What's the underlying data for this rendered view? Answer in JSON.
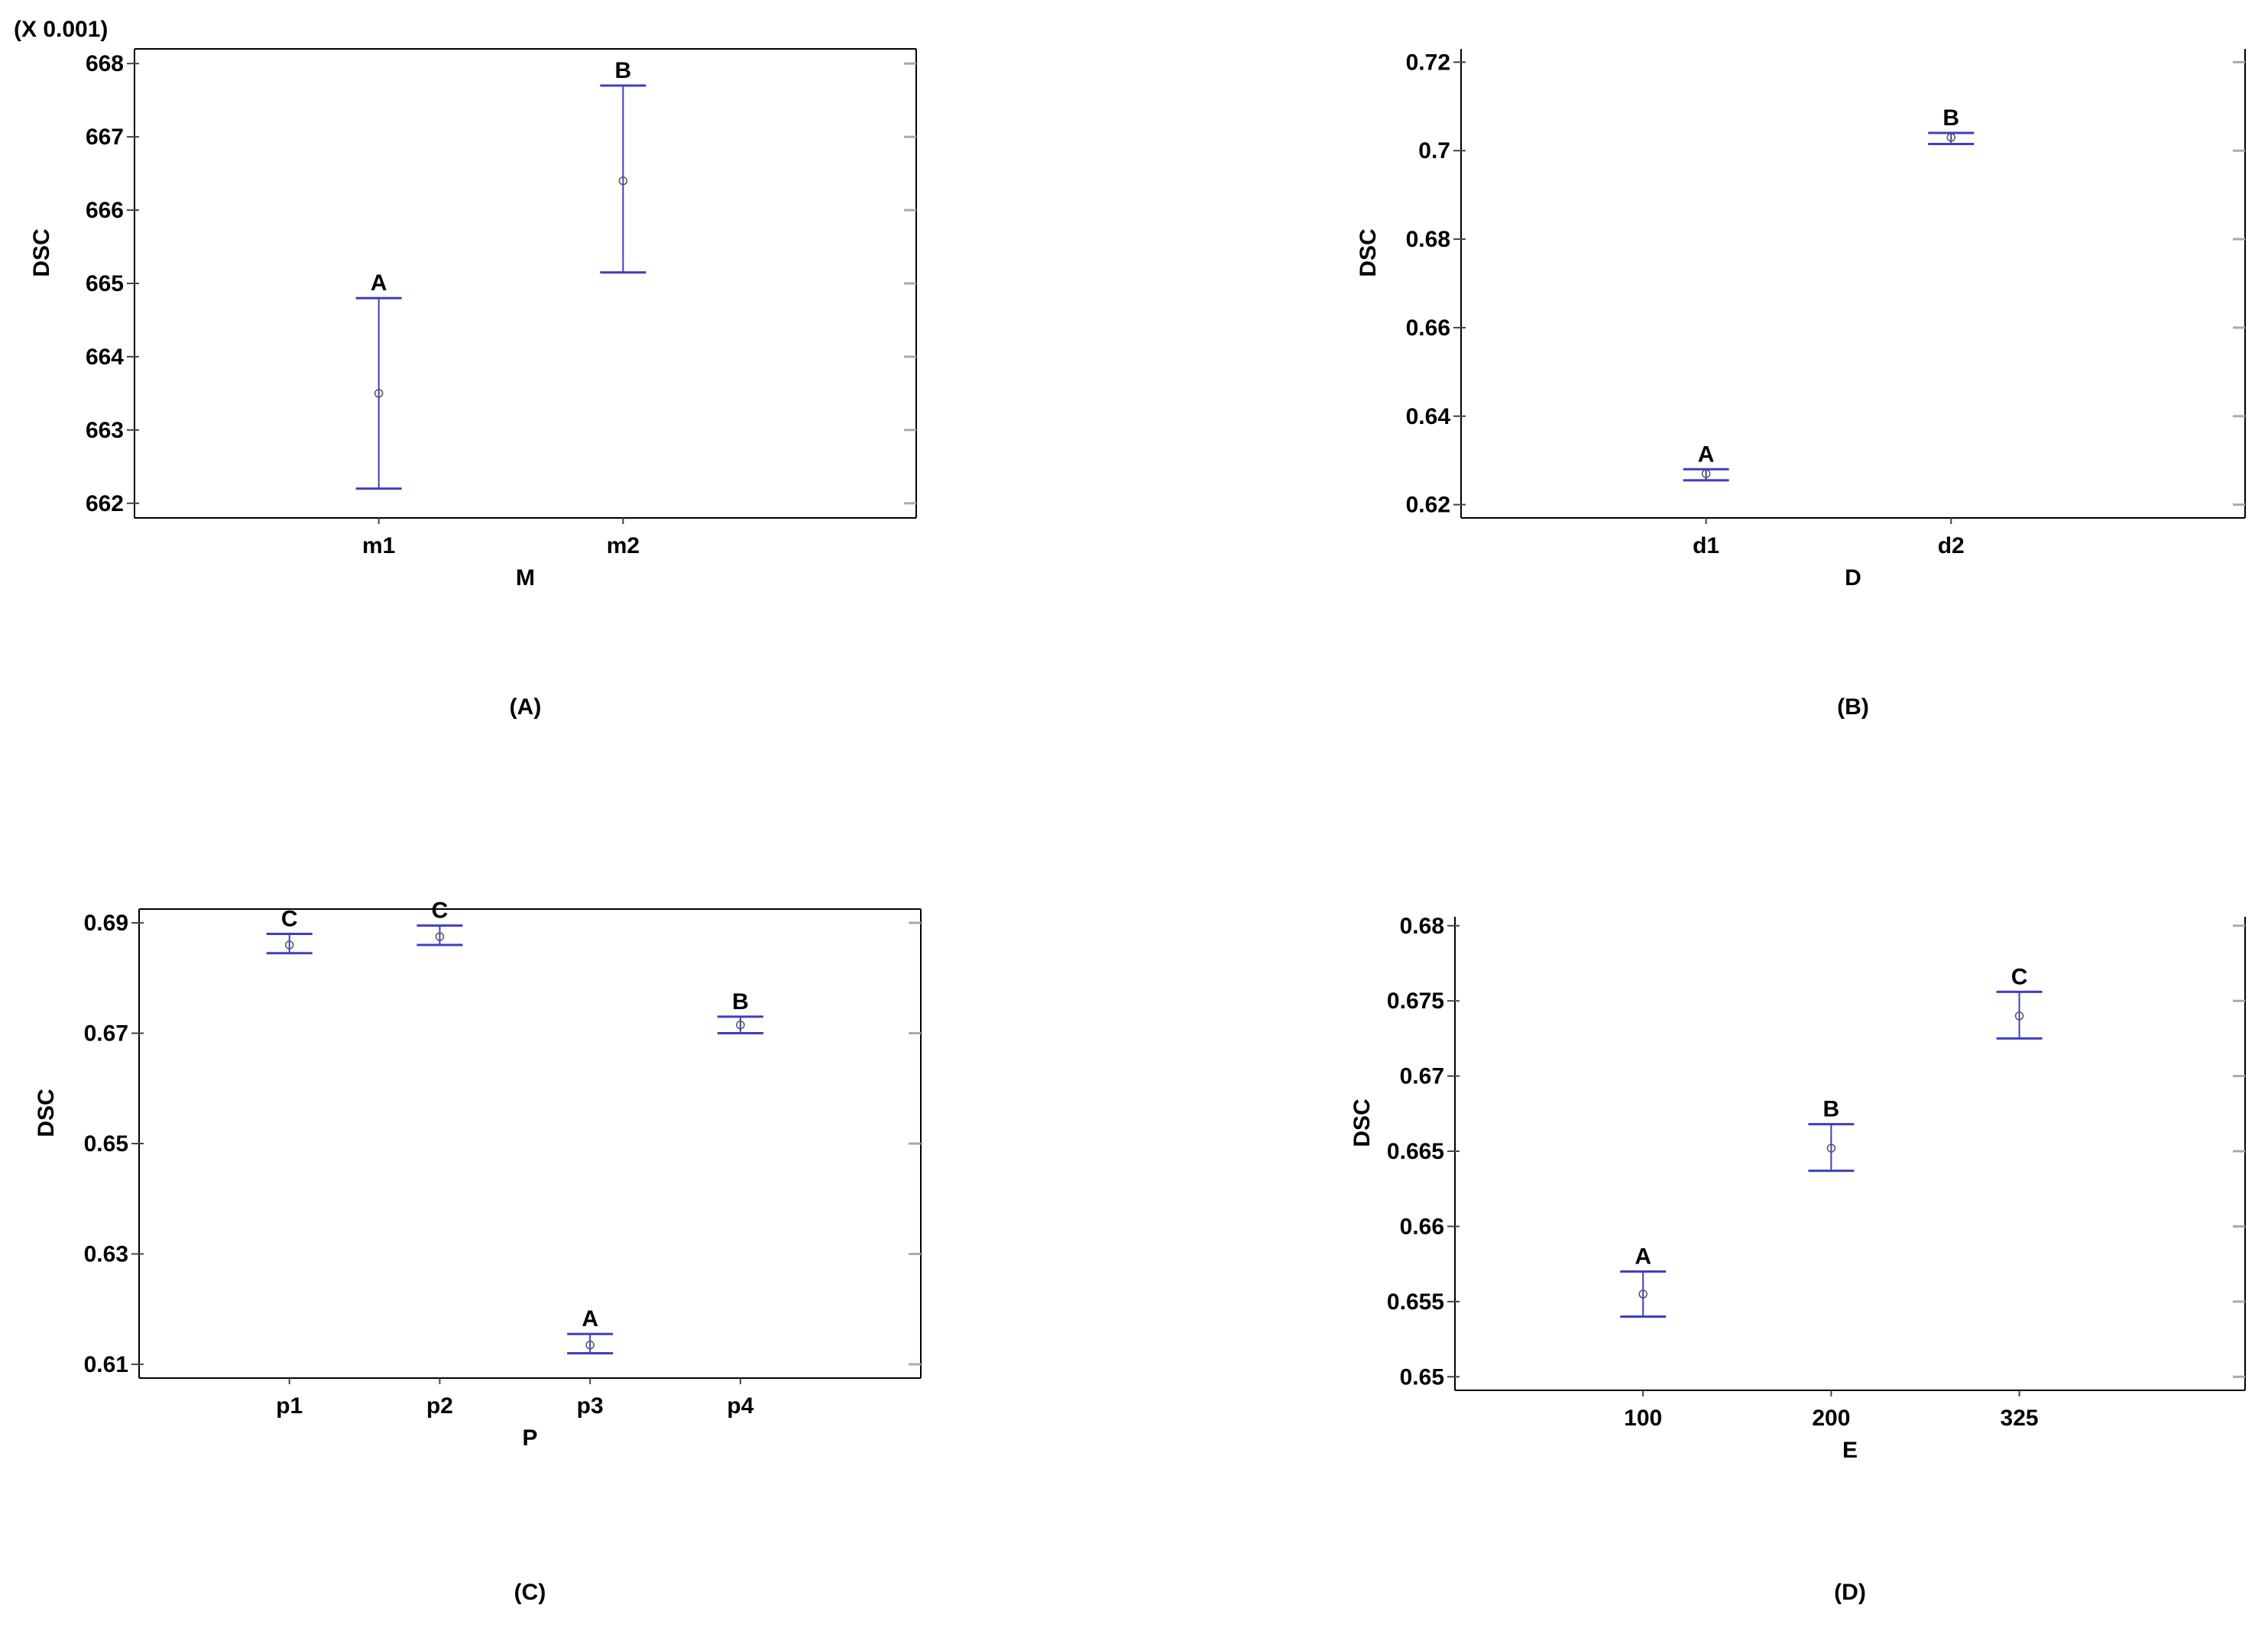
{
  "chart_data": [
    {
      "type": "scatter",
      "panel_label": "(A)",
      "scale_note": "(X 0.001)",
      "xlabel": "M",
      "ylabel": "DSC",
      "categories": [
        "m1",
        "m2"
      ],
      "ylim": [
        661.8,
        668.2
      ],
      "yticks": [
        {
          "value": 662,
          "label": "662"
        },
        {
          "value": 663,
          "label": "663"
        },
        {
          "value": 664,
          "label": "664"
        },
        {
          "value": 665,
          "label": "665"
        },
        {
          "value": 666,
          "label": "666"
        },
        {
          "value": 667,
          "label": "667"
        },
        {
          "value": 668,
          "label": "668"
        }
      ],
      "points": [
        {
          "category": "m1",
          "mean": 663.5,
          "lower": 662.2,
          "upper": 664.8,
          "group": "A"
        },
        {
          "category": "m2",
          "mean": 666.4,
          "lower": 665.15,
          "upper": 667.7,
          "group": "B"
        }
      ],
      "x_extent": 3.2,
      "top_box_closed": true
    },
    {
      "type": "scatter",
      "panel_label": "(B)",
      "scale_note": "",
      "xlabel": "D",
      "ylabel": "DSC",
      "categories": [
        "d1",
        "d2"
      ],
      "ylim": [
        0.617,
        0.723
      ],
      "yticks": [
        {
          "value": 0.62,
          "label": "0.62"
        },
        {
          "value": 0.64,
          "label": "0.64"
        },
        {
          "value": 0.66,
          "label": "0.66"
        },
        {
          "value": 0.68,
          "label": "0.68"
        },
        {
          "value": 0.7,
          "label": "0.7"
        },
        {
          "value": 0.72,
          "label": "0.72"
        }
      ],
      "points": [
        {
          "category": "d1",
          "mean": 0.627,
          "lower": 0.6255,
          "upper": 0.628,
          "group": "A"
        },
        {
          "category": "d2",
          "mean": 0.703,
          "lower": 0.7015,
          "upper": 0.704,
          "group": "B"
        }
      ],
      "x_extent": 3.2,
      "top_box_closed": false
    },
    {
      "type": "scatter",
      "panel_label": "(C)",
      "scale_note": "",
      "xlabel": "P",
      "ylabel": "DSC",
      "categories": [
        "p1",
        "p2",
        "p3",
        "p4"
      ],
      "ylim": [
        0.6075,
        0.6925
      ],
      "yticks": [
        {
          "value": 0.61,
          "label": "0.61"
        },
        {
          "value": 0.63,
          "label": "0.63"
        },
        {
          "value": 0.65,
          "label": "0.65"
        },
        {
          "value": 0.67,
          "label": "0.67"
        },
        {
          "value": 0.69,
          "label": "0.69"
        }
      ],
      "points": [
        {
          "category": "p1",
          "mean": 0.686,
          "lower": 0.6845,
          "upper": 0.688,
          "group": "C"
        },
        {
          "category": "p2",
          "mean": 0.6875,
          "lower": 0.686,
          "upper": 0.6895,
          "group": "C"
        },
        {
          "category": "p3",
          "mean": 0.6135,
          "lower": 0.612,
          "upper": 0.6155,
          "group": "A"
        },
        {
          "category": "p4",
          "mean": 0.6715,
          "lower": 0.67,
          "upper": 0.673,
          "group": "B"
        }
      ],
      "x_extent": 5.2,
      "top_box_closed": true
    },
    {
      "type": "scatter",
      "panel_label": "(D)",
      "scale_note": "",
      "xlabel": "E",
      "ylabel": "DSC",
      "categories": [
        "100",
        "200",
        "325"
      ],
      "ylim": [
        0.6491,
        0.6806
      ],
      "yticks": [
        {
          "value": 0.65,
          "label": "0.65"
        },
        {
          "value": 0.655,
          "label": "0.655"
        },
        {
          "value": 0.66,
          "label": "0.66"
        },
        {
          "value": 0.665,
          "label": "0.665"
        },
        {
          "value": 0.67,
          "label": "0.67"
        },
        {
          "value": 0.675,
          "label": "0.675"
        },
        {
          "value": 0.68,
          "label": "0.68"
        }
      ],
      "points": [
        {
          "category": "100",
          "mean": 0.6555,
          "lower": 0.654,
          "upper": 0.657,
          "group": "A"
        },
        {
          "category": "200",
          "mean": 0.6652,
          "lower": 0.6637,
          "upper": 0.6668,
          "group": "B"
        },
        {
          "category": "325",
          "mean": 0.674,
          "lower": 0.6725,
          "upper": 0.6756,
          "group": "C"
        }
      ],
      "x_extent": 4.2,
      "top_box_closed": false
    }
  ],
  "colors": {
    "interval": "#3f3fc0",
    "mean_marker": "#555555",
    "axes": "#000000",
    "tick_mark": "#444444"
  }
}
